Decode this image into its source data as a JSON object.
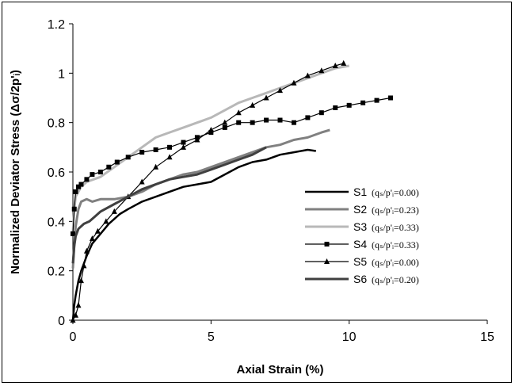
{
  "chart_data": {
    "type": "line",
    "title": "",
    "xlabel": "Axial Strain (%)",
    "ylabel": "Normalized Deviator Stress (Δσ/2p'ᵢ)",
    "xlim": [
      0,
      15
    ],
    "ylim": [
      0,
      1.2
    ],
    "x_ticks": [
      "0",
      "5",
      "10",
      "15"
    ],
    "y_ticks": [
      "0",
      "0.2",
      "0.4",
      "0.6",
      "0.8",
      "1",
      "1.2"
    ],
    "grid": false,
    "legend_position": "right",
    "series": [
      {
        "name": "S1",
        "condition": "(qₛ/p'ᵢ=0.00)",
        "color": "#000000",
        "marker": "none",
        "x": [
          0,
          0.05,
          0.1,
          0.2,
          0.3,
          0.5,
          0.7,
          1.0,
          1.3,
          1.7,
          2.0,
          2.5,
          3.0,
          3.5,
          4.0,
          4.5,
          5.0,
          5.5,
          6.0,
          6.5,
          7.0,
          7.5,
          8.0,
          8.5,
          8.8
        ],
        "y": [
          0.0,
          0.06,
          0.1,
          0.16,
          0.2,
          0.26,
          0.31,
          0.35,
          0.39,
          0.43,
          0.45,
          0.48,
          0.5,
          0.52,
          0.54,
          0.55,
          0.56,
          0.59,
          0.62,
          0.64,
          0.65,
          0.67,
          0.68,
          0.69,
          0.685
        ]
      },
      {
        "name": "S2",
        "condition": "(qₛ/p'ᵢ=0.23)",
        "color": "#808080",
        "marker": "none",
        "x": [
          0,
          0.05,
          0.1,
          0.2,
          0.3,
          0.5,
          0.7,
          1.0,
          1.5,
          2.0,
          2.5,
          3.0,
          3.5,
          4.0,
          4.5,
          5.0,
          5.5,
          6.0,
          6.5,
          7.0,
          7.5,
          8.0,
          8.5,
          9.0,
          9.3
        ],
        "y": [
          0.21,
          0.3,
          0.38,
          0.45,
          0.48,
          0.49,
          0.48,
          0.49,
          0.49,
          0.5,
          0.52,
          0.55,
          0.57,
          0.59,
          0.6,
          0.62,
          0.64,
          0.66,
          0.68,
          0.7,
          0.71,
          0.73,
          0.74,
          0.76,
          0.77
        ]
      },
      {
        "name": "S3",
        "condition": "(qₛ/p'ᵢ=0.33)",
        "color": "#b8b8b8",
        "marker": "none",
        "x": [
          0,
          0.05,
          0.1,
          0.3,
          0.5,
          1.0,
          1.5,
          2.0,
          2.5,
          3.0,
          3.5,
          4.0,
          4.5,
          5.0,
          5.5,
          6.0,
          6.5,
          7.0,
          7.5,
          8.0,
          8.5,
          9.0,
          9.5,
          10.0
        ],
        "y": [
          0.36,
          0.45,
          0.5,
          0.54,
          0.56,
          0.58,
          0.62,
          0.66,
          0.7,
          0.74,
          0.76,
          0.78,
          0.8,
          0.82,
          0.85,
          0.88,
          0.9,
          0.92,
          0.94,
          0.96,
          0.98,
          1.0,
          1.02,
          1.03
        ]
      },
      {
        "name": "S4",
        "condition": "(qₛ/p'ᵢ=0.33)",
        "color": "#000000",
        "marker": "square",
        "x": [
          0,
          0.05,
          0.1,
          0.2,
          0.3,
          0.5,
          0.7,
          1.0,
          1.3,
          1.6,
          2.0,
          2.5,
          3.0,
          3.5,
          4.0,
          4.5,
          5.0,
          5.5,
          6.0,
          6.5,
          7.0,
          7.5,
          8.0,
          8.5,
          9.0,
          9.5,
          10.0,
          10.5,
          11.0,
          11.5
        ],
        "y": [
          0.35,
          0.45,
          0.52,
          0.54,
          0.55,
          0.57,
          0.59,
          0.6,
          0.62,
          0.64,
          0.66,
          0.68,
          0.69,
          0.7,
          0.72,
          0.74,
          0.76,
          0.78,
          0.8,
          0.8,
          0.81,
          0.81,
          0.8,
          0.82,
          0.84,
          0.86,
          0.87,
          0.88,
          0.89,
          0.9
        ]
      },
      {
        "name": "S5",
        "condition": "(qₛ/p'ᵢ=0.00)",
        "color": "#000000",
        "marker": "triangle",
        "x": [
          0,
          0.1,
          0.2,
          0.3,
          0.4,
          0.5,
          0.7,
          0.9,
          1.2,
          1.5,
          2.0,
          2.5,
          3.0,
          3.5,
          4.0,
          4.5,
          5.0,
          5.5,
          6.0,
          6.5,
          7.0,
          7.5,
          8.0,
          8.5,
          9.0,
          9.5,
          9.8
        ],
        "y": [
          0.0,
          0.02,
          0.06,
          0.16,
          0.22,
          0.28,
          0.33,
          0.36,
          0.4,
          0.44,
          0.5,
          0.56,
          0.62,
          0.66,
          0.7,
          0.73,
          0.77,
          0.8,
          0.84,
          0.87,
          0.9,
          0.93,
          0.96,
          0.99,
          1.01,
          1.03,
          1.04
        ]
      },
      {
        "name": "S6",
        "condition": "(qₛ/p'ᵢ=0.20)",
        "color": "#404040",
        "marker": "none",
        "x": [
          0,
          0.05,
          0.1,
          0.2,
          0.4,
          0.6,
          0.8,
          1.0,
          1.5,
          2.0,
          2.5,
          3.0,
          3.5,
          4.0,
          4.5,
          5.0,
          5.5,
          6.0,
          6.5,
          7.0
        ],
        "y": [
          0.23,
          0.3,
          0.34,
          0.37,
          0.39,
          0.4,
          0.42,
          0.44,
          0.47,
          0.5,
          0.53,
          0.55,
          0.57,
          0.58,
          0.59,
          0.61,
          0.63,
          0.65,
          0.67,
          0.7
        ]
      }
    ]
  }
}
